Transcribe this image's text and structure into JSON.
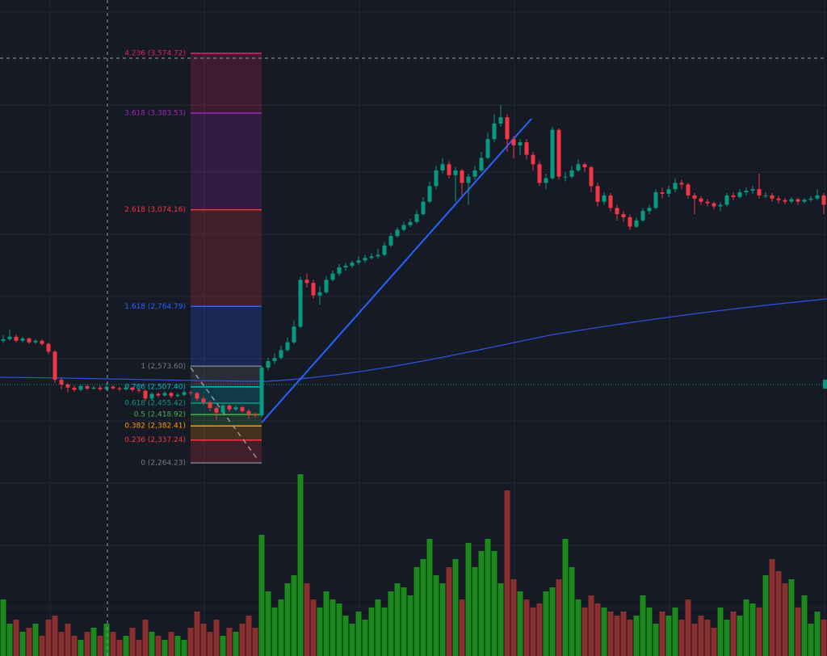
{
  "chart_data": {
    "type": "candlestick",
    "open": [
      2655,
      2660,
      2668,
      2655,
      2662,
      2650,
      2655,
      2645,
      2620,
      2530,
      2515,
      2505,
      2498,
      2510,
      2502,
      2505,
      2500,
      2508,
      2503,
      2500,
      2505,
      2498,
      2495,
      2470,
      2485,
      2480,
      2488,
      2478,
      2482,
      2490,
      2488,
      2470,
      2458,
      2440,
      2425,
      2448,
      2435,
      2442,
      2430,
      2420,
      2416,
      2569,
      2590,
      2600,
      2625,
      2650,
      2700,
      2850,
      2840,
      2800,
      2810,
      2850,
      2870,
      2890,
      2895,
      2905,
      2912,
      2920,
      2925,
      2930,
      2960,
      2990,
      3010,
      3025,
      3035,
      3060,
      3100,
      3150,
      3200,
      3220,
      3185,
      3200,
      3160,
      3180,
      3200,
      3240,
      3300,
      3350,
      3370,
      3300,
      3280,
      3290,
      3250,
      3220,
      3160,
      3175,
      3330,
      3180,
      3180,
      3200,
      3220,
      3210,
      3150,
      3100,
      3120,
      3080,
      3060,
      3050,
      3020,
      3040,
      3070,
      3080,
      3130,
      3125,
      3140,
      3160,
      3155,
      3120,
      3110,
      3100,
      3095,
      3085,
      3090,
      3120,
      3115,
      3130,
      3135,
      3140,
      3120,
      3120,
      3110,
      3105,
      3100,
      3108,
      3100,
      3106,
      3110,
      3120
    ],
    "high": [
      2672,
      2690,
      2675,
      2668,
      2666,
      2660,
      2660,
      2650,
      2625,
      2535,
      2520,
      2512,
      2515,
      2514,
      2510,
      2512,
      2520,
      2512,
      2508,
      2510,
      2508,
      2502,
      2500,
      2490,
      2490,
      2494,
      2492,
      2488,
      2496,
      2495,
      2492,
      2475,
      2462,
      2445,
      2452,
      2452,
      2450,
      2446,
      2436,
      2425,
      2575,
      2600,
      2615,
      2640,
      2665,
      2720,
      2860,
      2870,
      2850,
      2830,
      2862,
      2880,
      2900,
      2905,
      2912,
      2925,
      2930,
      2935,
      2950,
      2970,
      3000,
      3018,
      3035,
      3045,
      3072,
      3115,
      3165,
      3215,
      3240,
      3230,
      3210,
      3205,
      3190,
      3215,
      3260,
      3320,
      3380,
      3410,
      3380,
      3310,
      3300,
      3300,
      3260,
      3230,
      3190,
      3340,
      3335,
      3195,
      3215,
      3235,
      3225,
      3215,
      3160,
      3130,
      3128,
      3090,
      3070,
      3060,
      3050,
      3080,
      3090,
      3140,
      3145,
      3150,
      3175,
      3170,
      3160,
      3128,
      3118,
      3108,
      3100,
      3098,
      3128,
      3130,
      3140,
      3145,
      3150,
      3190,
      3130,
      3128,
      3118,
      3112,
      3115,
      3112,
      3112,
      3118,
      3140,
      3128
    ],
    "low": [
      2648,
      2655,
      2650,
      2650,
      2645,
      2645,
      2640,
      2612,
      2520,
      2500,
      2490,
      2492,
      2494,
      2497,
      2498,
      2495,
      2496,
      2498,
      2494,
      2496,
      2492,
      2488,
      2462,
      2465,
      2474,
      2476,
      2472,
      2474,
      2478,
      2480,
      2462,
      2450,
      2430,
      2400,
      2420,
      2428,
      2430,
      2424,
      2405,
      2410,
      2410,
      2560,
      2580,
      2595,
      2620,
      2645,
      2695,
      2825,
      2790,
      2770,
      2805,
      2845,
      2862,
      2880,
      2888,
      2898,
      2905,
      2915,
      2918,
      2925,
      2955,
      2985,
      3005,
      3018,
      3030,
      3055,
      3095,
      3140,
      3190,
      3175,
      3100,
      3120,
      3090,
      3170,
      3195,
      3235,
      3290,
      3340,
      3260,
      3240,
      3250,
      3235,
      3200,
      3150,
      3140,
      3170,
      3170,
      3165,
      3175,
      3195,
      3195,
      3130,
      3085,
      3090,
      3070,
      3040,
      3035,
      3010,
      3015,
      3035,
      3060,
      3075,
      3110,
      3115,
      3130,
      3140,
      3110,
      3060,
      3090,
      3085,
      3075,
      3070,
      3085,
      3105,
      3110,
      3120,
      3125,
      3110,
      3112,
      3100,
      3095,
      3092,
      3095,
      3090,
      3094,
      3100,
      3105,
      3060
    ],
    "close": [
      2660,
      2668,
      2655,
      2662,
      2650,
      2655,
      2645,
      2620,
      2530,
      2515,
      2505,
      2498,
      2510,
      2502,
      2505,
      2500,
      2508,
      2503,
      2500,
      2505,
      2498,
      2495,
      2470,
      2485,
      2480,
      2488,
      2478,
      2482,
      2490,
      2488,
      2470,
      2458,
      2440,
      2425,
      2448,
      2435,
      2442,
      2430,
      2420,
      2416,
      2569,
      2590,
      2600,
      2625,
      2650,
      2700,
      2850,
      2840,
      2800,
      2810,
      2850,
      2870,
      2890,
      2895,
      2905,
      2912,
      2920,
      2925,
      2930,
      2960,
      2990,
      3010,
      3025,
      3035,
      3060,
      3100,
      3150,
      3200,
      3220,
      3185,
      3200,
      3160,
      3180,
      3200,
      3240,
      3300,
      3350,
      3370,
      3300,
      3280,
      3290,
      3250,
      3220,
      3160,
      3175,
      3330,
      3180,
      3180,
      3200,
      3220,
      3210,
      3150,
      3100,
      3120,
      3080,
      3060,
      3050,
      3020,
      3040,
      3070,
      3080,
      3130,
      3125,
      3140,
      3160,
      3155,
      3120,
      3110,
      3100,
      3095,
      3085,
      3090,
      3120,
      3115,
      3130,
      3135,
      3140,
      3120,
      3120,
      3110,
      3105,
      3100,
      3108,
      3100,
      3106,
      3110,
      3120,
      3090
    ],
    "volume": [
      70,
      40,
      45,
      30,
      35,
      40,
      25,
      45,
      50,
      30,
      40,
      25,
      20,
      30,
      35,
      25,
      40,
      30,
      20,
      25,
      35,
      20,
      45,
      30,
      25,
      20,
      30,
      25,
      20,
      35,
      55,
      40,
      30,
      45,
      25,
      35,
      30,
      40,
      50,
      35,
      150,
      80,
      60,
      70,
      90,
      100,
      225,
      90,
      70,
      60,
      80,
      70,
      65,
      50,
      40,
      55,
      45,
      60,
      70,
      60,
      80,
      90,
      85,
      75,
      110,
      120,
      145,
      100,
      90,
      110,
      120,
      70,
      140,
      110,
      130,
      145,
      130,
      90,
      205,
      95,
      80,
      70,
      60,
      65,
      80,
      85,
      95,
      145,
      110,
      70,
      60,
      75,
      65,
      60,
      55,
      50,
      55,
      45,
      50,
      75,
      60,
      40,
      55,
      50,
      60,
      45,
      70,
      40,
      50,
      45,
      35,
      60,
      45,
      55,
      50,
      70,
      65,
      60,
      100,
      120,
      105,
      90,
      95,
      60,
      75,
      40,
      55,
      45
    ],
    "ylim": [
      1646.3,
      3745.3
    ],
    "y2lim": [
      0,
      812
    ],
    "up_color": "#089981",
    "down_color": "#f23645",
    "volume_up_color": "#1a8a1a",
    "volume_down_color": "#8a2e2e",
    "fib_levels": [
      {
        "label": "0 (2,264.23)",
        "value": 2264.23,
        "color": "#787b86"
      },
      {
        "label": "0.236 (2,337.24)",
        "value": 2337.24,
        "color": "#f23645"
      },
      {
        "label": "0.382 (2,382.41)",
        "value": 2382.41,
        "color": "#ff9800"
      },
      {
        "label": "0.5 (2,418.92)",
        "value": 2418.92,
        "color": "#4caf50"
      },
      {
        "label": "0.618 (2,455.42)",
        "value": 2455.42,
        "color": "#089981"
      },
      {
        "label": "0.786 (2,507.40)",
        "value": 2507.4,
        "color": "#00bcd4"
      },
      {
        "label": "1 (2,573.60)",
        "value": 2573.6,
        "color": "#787b86"
      },
      {
        "label": "1.618 (2,764.79)",
        "value": 2764.79,
        "color": "#2962ff"
      },
      {
        "label": "2.618 (3,074.16)",
        "value": 3074.16,
        "color": "#f23645"
      },
      {
        "label": "3.618 (3,383.53)",
        "value": 3383.53,
        "color": "#9c27b0"
      },
      {
        "label": "4.236 (3,574.72)",
        "value": 3574.72,
        "color": "#e91e63"
      }
    ]
  }
}
